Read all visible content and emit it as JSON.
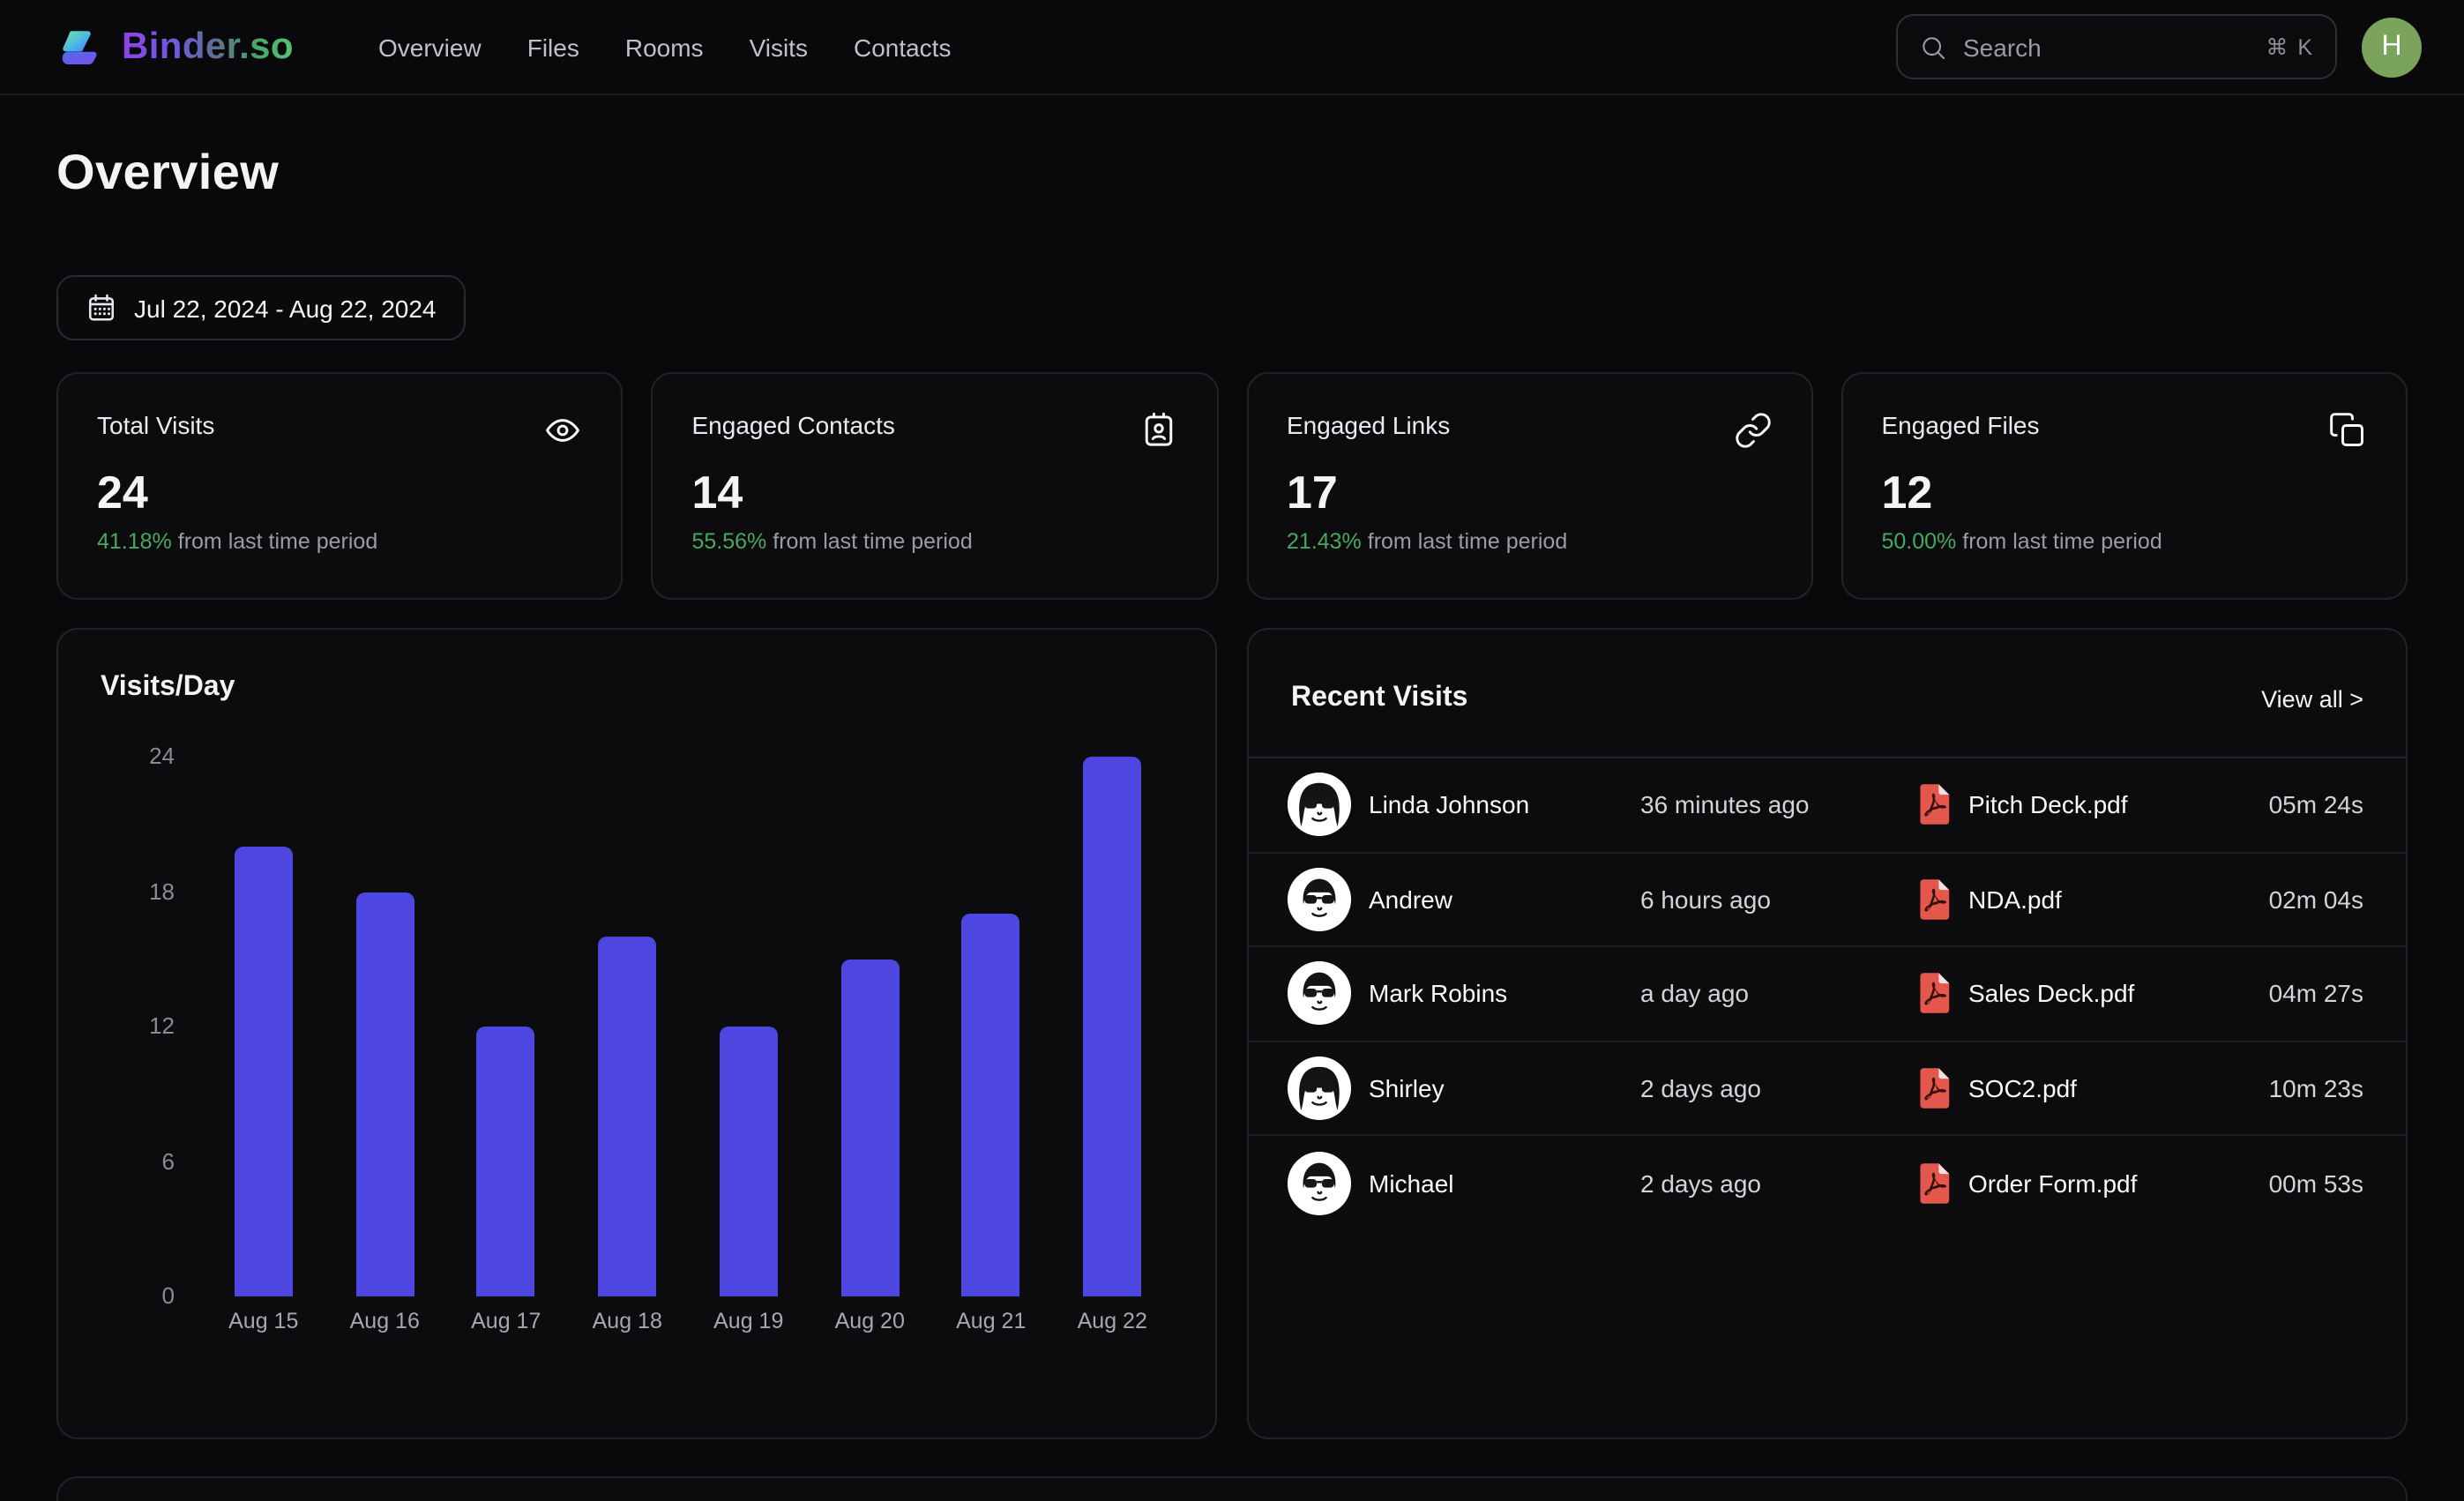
{
  "header": {
    "brand": "Binder.so",
    "nav": [
      {
        "label": "Overview"
      },
      {
        "label": "Files"
      },
      {
        "label": "Rooms"
      },
      {
        "label": "Visits"
      },
      {
        "label": "Contacts"
      }
    ],
    "search": {
      "placeholder": "Search",
      "shortcut": "⌘ K"
    },
    "user_initial": "H"
  },
  "page": {
    "title": "Overview",
    "date_range": "Jul 22, 2024 - Aug 22, 2024"
  },
  "stats": [
    {
      "label": "Total Visits",
      "value": "24",
      "delta": "41.18%",
      "delta_text": " from last time period",
      "icon": "eye-icon"
    },
    {
      "label": "Engaged Contacts",
      "value": "14",
      "delta": "55.56%",
      "delta_text": " from last time period",
      "icon": "contact-card-icon"
    },
    {
      "label": "Engaged Links",
      "value": "17",
      "delta": "21.43%",
      "delta_text": " from last time period",
      "icon": "link-icon"
    },
    {
      "label": "Engaged Files",
      "value": "12",
      "delta": "50.00%",
      "delta_text": " from last time period",
      "icon": "files-icon"
    }
  ],
  "chart_data": {
    "type": "bar",
    "title": "Visits/Day",
    "categories": [
      "Aug 15",
      "Aug 16",
      "Aug 17",
      "Aug 18",
      "Aug 19",
      "Aug 20",
      "Aug 21",
      "Aug 22"
    ],
    "values": [
      20,
      18,
      12,
      16,
      12,
      15,
      17,
      24
    ],
    "xlabel": "",
    "ylabel": "",
    "ylim": [
      0,
      24
    ],
    "yticks": [
      0,
      6,
      12,
      18,
      24
    ],
    "grid": false,
    "legend": "none",
    "bar_color": "#4e46e0"
  },
  "recent_visits": {
    "title": "Recent Visits",
    "view_all": "View all >",
    "rows": [
      {
        "name": "Linda Johnson",
        "time": "36 minutes ago",
        "file": "Pitch Deck.pdf",
        "duration": "05m 24s",
        "avatar": "woman"
      },
      {
        "name": "Andrew",
        "time": "6 hours ago",
        "file": "NDA.pdf",
        "duration": "02m 04s",
        "avatar": "man"
      },
      {
        "name": "Mark Robins",
        "time": "a day ago",
        "file": "Sales Deck.pdf",
        "duration": "04m 27s",
        "avatar": "man"
      },
      {
        "name": "Shirley",
        "time": "2 days ago",
        "file": "SOC2.pdf",
        "duration": "10m 23s",
        "avatar": "woman"
      },
      {
        "name": "Michael",
        "time": "2 days ago",
        "file": "Order Form.pdf",
        "duration": "00m 53s",
        "avatar": "man"
      }
    ]
  },
  "colors": {
    "background": "#09090b",
    "card_background": "#0c0c0e",
    "card_border": "#222228",
    "bar": "#4e46e0",
    "delta_green": "#46a95e",
    "avatar_green": "#7aa45b",
    "pdf_red": "#e5564c"
  }
}
